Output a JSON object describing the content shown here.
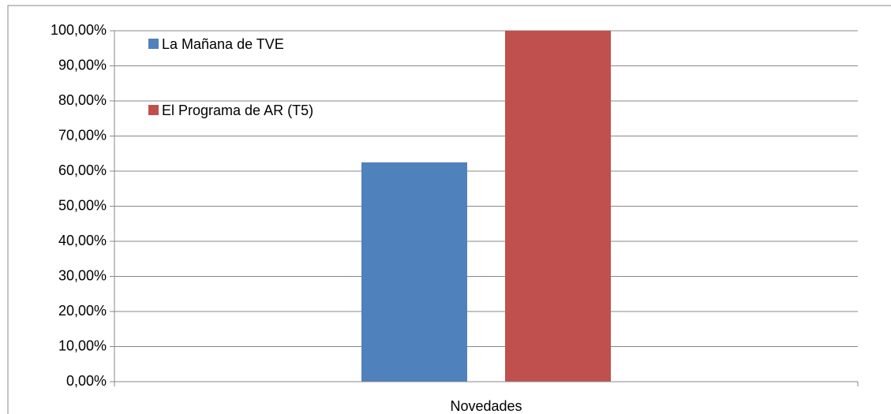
{
  "chart_data": {
    "type": "bar",
    "categories": [
      "Novedades"
    ],
    "series": [
      {
        "name": "La Mañana de TVE",
        "color": "#4f81bd",
        "values": [
          62.5
        ]
      },
      {
        "name": "El Programa de AR (T5)",
        "color": "#c0504d",
        "values": [
          100
        ]
      }
    ],
    "ylim": [
      0,
      100
    ],
    "yticks": [
      {
        "value": 0,
        "label": "0,00%"
      },
      {
        "value": 10,
        "label": "10,00%"
      },
      {
        "value": 20,
        "label": "20,00%"
      },
      {
        "value": 30,
        "label": "30,00%"
      },
      {
        "value": 40,
        "label": "40,00%"
      },
      {
        "value": 50,
        "label": "50,00%"
      },
      {
        "value": 60,
        "label": "60,00%"
      },
      {
        "value": 70,
        "label": "70,00%"
      },
      {
        "value": 80,
        "label": "80,00%"
      },
      {
        "value": 90,
        "label": "90,00%"
      },
      {
        "value": 100,
        "label": "100,00%"
      }
    ],
    "grid": true,
    "legend": "top-left"
  }
}
